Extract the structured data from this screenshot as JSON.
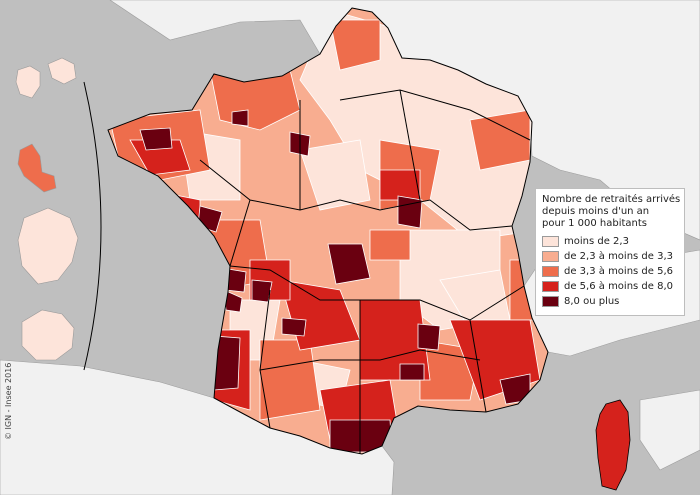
{
  "legend": {
    "title_lines": [
      "Nombre de retraités arrivés",
      "depuis moins d'un an",
      "pour 1 000 habitants"
    ],
    "classes": [
      {
        "label": "moins de 2,3",
        "color": "#fde4da"
      },
      {
        "label": "de 2,3 à moins de 3,3",
        "color": "#f8ad90"
      },
      {
        "label": "de 3,3 à moins de 5,6",
        "color": "#ee6d4c"
      },
      {
        "label": "de 5,6 à moins de 8,0",
        "color": "#d5221c"
      },
      {
        "label": "8,0 ou plus",
        "color": "#6a0010"
      }
    ]
  },
  "credit": "© IGN - Insee 2016",
  "colors": {
    "sea": "#bfbfbf",
    "land_neighbors": "#f1f1f1",
    "border": "#000000",
    "zone_border": "#ffffff"
  }
}
